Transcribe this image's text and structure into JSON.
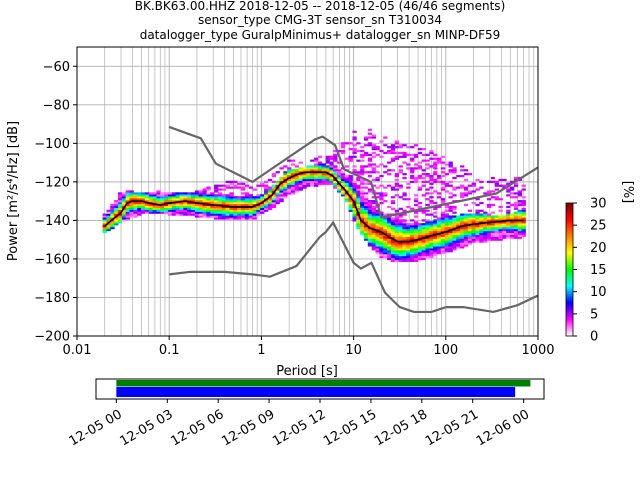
{
  "header": {
    "line1": "BK.BK63.00.HHZ   2018-12-05 -- 2018-12-05  (46/46 segments)",
    "line2": "sensor_type CMG-3T sensor_sn T310034",
    "line3": "datalogger_type GuralpMinimus+ datalogger_sn MINP-DF59"
  },
  "chart_data": {
    "type": "heatmap",
    "xlabel": "Period [s]",
    "ylabel": "Power [m²/s⁴/Hz] [dB]",
    "xscale": "log",
    "xlim": [
      0.01,
      1000
    ],
    "ylim": [
      -200,
      -50
    ],
    "x_ticks": [
      0.01,
      0.1,
      1,
      10,
      100,
      1000
    ],
    "x_tick_labels": [
      "0.01",
      "0.1",
      "1",
      "10",
      "100",
      "1000"
    ],
    "y_ticks": [
      -200,
      -180,
      -160,
      -140,
      -120,
      -100,
      -80,
      -60
    ],
    "y_tick_labels": [
      "−200",
      "−180",
      "−160",
      "−140",
      "−120",
      "−100",
      "−80",
      "−60"
    ],
    "grid": true,
    "colorbar": {
      "label": "[%]",
      "range": [
        0,
        30
      ],
      "ticks": [
        0,
        5,
        10,
        15,
        20,
        25,
        30
      ],
      "tick_labels": [
        "0",
        "5",
        "10",
        "15",
        "20",
        "25",
        "30"
      ],
      "stops": [
        "#ffffff",
        "#ff00ff",
        "#0000ff",
        "#00ffff",
        "#00ff00",
        "#ffff00",
        "#ff8000",
        "#ff0000",
        "#800000"
      ]
    },
    "noise_models": [
      {
        "periods": [
          0.1,
          0.17,
          0.4,
          0.8,
          1.24,
          2.4,
          4.3,
          5,
          6,
          10,
          12,
          15.6,
          21.9,
          31.6,
          45,
          70,
          101,
          154,
          328,
          600,
          1000
        ],
        "db": [
          -168,
          -166.7,
          -166.7,
          -168,
          -169.2,
          -163.7,
          -148.6,
          -146,
          -141.1,
          -162,
          -165,
          -162,
          -177.5,
          -185,
          -187.5,
          -187.5,
          -185,
          -185,
          -187.5,
          -184,
          -179
        ]
      },
      {
        "periods": [
          0.1,
          0.22,
          0.32,
          0.8,
          3.8,
          4.6,
          6.3,
          7.9,
          15.4,
          20,
          354.8,
          1000
        ],
        "db": [
          -91.5,
          -97.4,
          -110.5,
          -120,
          -98,
          -96.5,
          -101,
          -113.5,
          -120,
          -138.5,
          -126,
          -112.5
        ]
      }
    ],
    "median_curve": {
      "periods": [
        0.02,
        0.025,
        0.03,
        0.035,
        0.04,
        0.05,
        0.06,
        0.08,
        0.1,
        0.15,
        0.2,
        0.3,
        0.5,
        0.8,
        1,
        1.3,
        1.6,
        2,
        2.5,
        3,
        4,
        5,
        6,
        7,
        8,
        10,
        12,
        15,
        20,
        25,
        30,
        40,
        50,
        70,
        100,
        150,
        200,
        300,
        500,
        700
      ],
      "db": [
        -143,
        -139,
        -136,
        -131,
        -130,
        -130,
        -131,
        -132,
        -131,
        -130,
        -131,
        -132,
        -133,
        -133,
        -131,
        -127,
        -121,
        -118,
        -116,
        -115,
        -115,
        -115,
        -117,
        -121,
        -124,
        -130,
        -140,
        -144,
        -146,
        -149,
        -151,
        -151,
        -150,
        -148,
        -146,
        -143,
        -142,
        -141,
        -140,
        -140
      ]
    },
    "histogram": {
      "periods": [
        0.02,
        0.03,
        0.05,
        0.08,
        0.1,
        0.2,
        0.3,
        0.5,
        0.8,
        1,
        1.5,
        2,
        3,
        4,
        5,
        6,
        8,
        10,
        12,
        15,
        20,
        30,
        50,
        100,
        200,
        400,
        700
      ],
      "db_low": [
        -146,
        -140,
        -136,
        -136,
        -136,
        -137,
        -138,
        -139,
        -139,
        -136,
        -131,
        -126,
        -122,
        -121,
        -120,
        -121,
        -127,
        -138,
        -146,
        -152,
        -158,
        -161,
        -160,
        -156,
        -151,
        -149,
        -148
      ],
      "db_high": [
        -137,
        -126,
        -125,
        -126,
        -126,
        -126,
        -126,
        -127,
        -128,
        -127,
        -120,
        -114,
        -112,
        -111,
        -111,
        -112,
        -115,
        -119,
        -123,
        -131,
        -136,
        -140,
        -142,
        -138,
        -136,
        -138,
        -134
      ],
      "scatter_db_high": [
        -137,
        -126,
        -125,
        -126,
        -126,
        -126,
        -122,
        -120,
        -120,
        -120,
        -115,
        -110,
        -108,
        -108,
        -107,
        -105,
        -100,
        -95,
        -93,
        -93,
        -97,
        -100,
        -102,
        -108,
        -115,
        -120,
        -118
      ]
    }
  },
  "time_bar": {
    "tick_labels": [
      "12-05 00",
      "12-05 03",
      "12-05 06",
      "12-05 09",
      "12-05 12",
      "12-05 15",
      "12-05 18",
      "12-05 21",
      "12-06 00"
    ],
    "tick_hours": [
      0,
      3,
      6,
      9,
      12,
      15,
      18,
      21,
      24
    ],
    "range_hours": [
      -1.2,
      25.2
    ],
    "green_span_hours": [
      0,
      24.4
    ],
    "blue_span_hours": [
      0,
      23.5
    ],
    "green_color": "#008000",
    "blue_color": "#0000ff"
  }
}
